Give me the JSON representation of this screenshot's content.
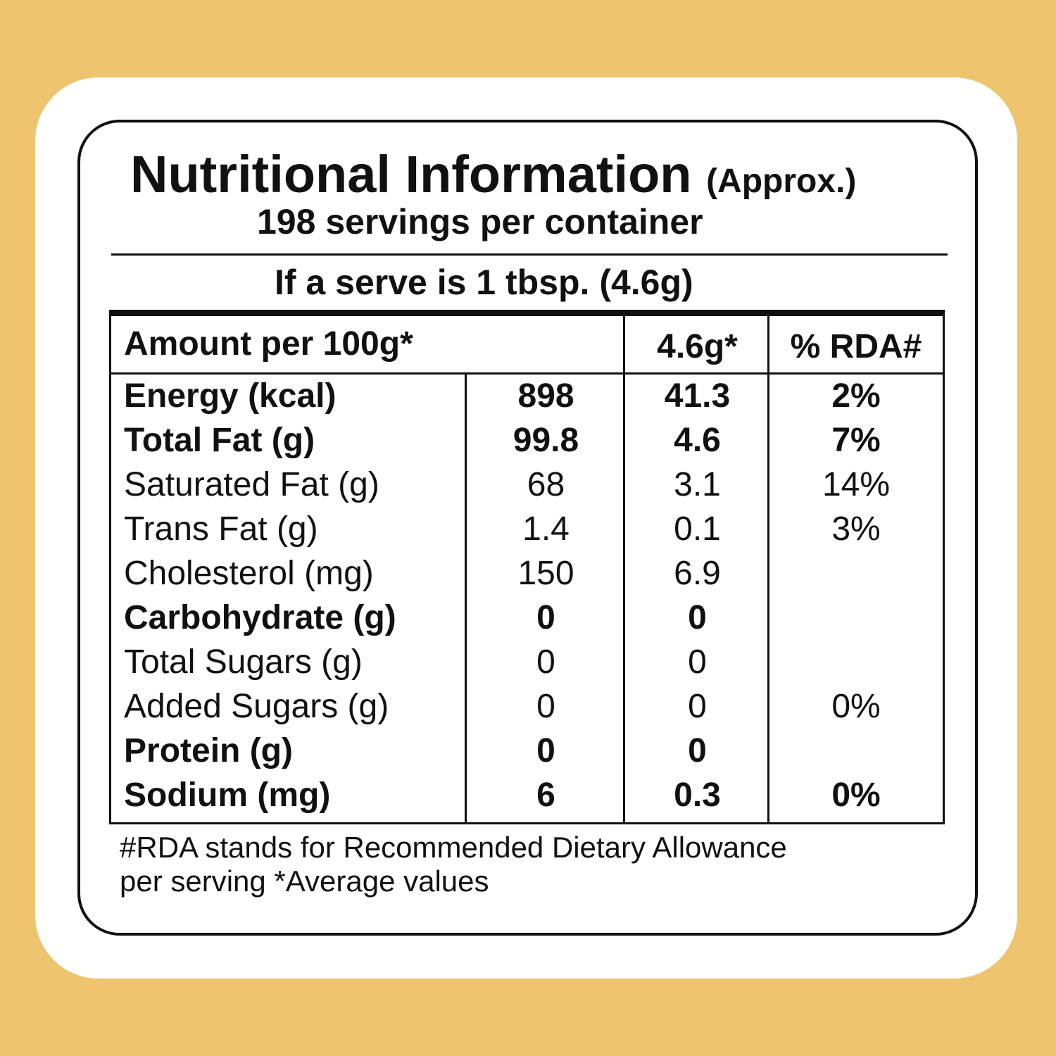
{
  "title": "Nutritional Information",
  "title_suffix": "(Approx.)",
  "subtitle": "198 servings per container",
  "serve": "If a serve is 1 tbsp. (4.6g)",
  "table": {
    "header": [
      "Amount per 100g*",
      "4.6g*",
      "% RDA#"
    ],
    "rows": [
      {
        "label": "Energy (kcal)",
        "per_100g": "898",
        "per_serve": "41.3",
        "rda": "2%",
        "bold": true
      },
      {
        "label": "Total Fat (g)",
        "per_100g": "99.8",
        "per_serve": "4.6",
        "rda": "7%",
        "bold": true
      },
      {
        "label": "Saturated Fat (g)",
        "per_100g": "68",
        "per_serve": "3.1",
        "rda": "14%",
        "bold": false
      },
      {
        "label": "Trans Fat (g)",
        "per_100g": "1.4",
        "per_serve": "0.1",
        "rda": "3%",
        "bold": false
      },
      {
        "label": "Cholesterol (mg)",
        "per_100g": "150",
        "per_serve": "6.9",
        "rda": null,
        "bold": false
      },
      {
        "label": "Carbohydrate (g)",
        "per_100g": "0",
        "per_serve": "0",
        "rda": null,
        "bold": true
      },
      {
        "label": "Total Sugars (g)",
        "per_100g": "0",
        "per_serve": "0",
        "rda": null,
        "bold": false
      },
      {
        "label": "Added Sugars (g)",
        "per_100g": "0",
        "per_serve": "0",
        "rda": "0%",
        "bold": false
      },
      {
        "label": "Protein (g)",
        "per_100g": "0",
        "per_serve": "0",
        "rda": null,
        "bold": true
      },
      {
        "label": "Sodium (mg)",
        "per_100g": "6",
        "per_serve": "0.3",
        "rda": "0%",
        "bold": true
      }
    ]
  },
  "footnote": [
    "#RDA stands for Recommended Dietary Allowance",
    "per serving *Average values"
  ]
}
